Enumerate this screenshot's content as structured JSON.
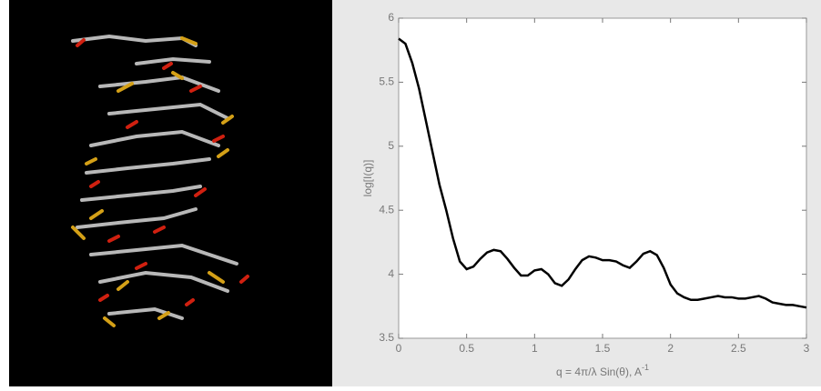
{
  "chart_data": {
    "type": "line",
    "ylabel": "log[I(q)]",
    "xlabel": "q = 4π/λ Sin(θ), A",
    "xlabel_superscript": "-1",
    "x": [
      0,
      0.05,
      0.1,
      0.15,
      0.2,
      0.25,
      0.3,
      0.35,
      0.4,
      0.45,
      0.5,
      0.55,
      0.6,
      0.65,
      0.7,
      0.75,
      0.8,
      0.85,
      0.9,
      0.95,
      1.0,
      1.05,
      1.1,
      1.15,
      1.2,
      1.25,
      1.3,
      1.35,
      1.4,
      1.45,
      1.5,
      1.55,
      1.6,
      1.65,
      1.7,
      1.75,
      1.8,
      1.85,
      1.9,
      1.95,
      2.0,
      2.05,
      2.1,
      2.15,
      2.2,
      2.25,
      2.3,
      2.35,
      2.4,
      2.45,
      2.5,
      2.55,
      2.6,
      2.65,
      2.7,
      2.75,
      2.8,
      2.85,
      2.9,
      2.95,
      3.0
    ],
    "series": [
      {
        "color": "#000000",
        "values": [
          5.84,
          5.8,
          5.65,
          5.45,
          5.2,
          4.95,
          4.7,
          4.5,
          4.28,
          4.1,
          4.04,
          4.06,
          4.12,
          4.17,
          4.19,
          4.18,
          4.12,
          4.05,
          3.99,
          3.99,
          4.03,
          4.04,
          4.0,
          3.93,
          3.91,
          3.96,
          4.04,
          4.11,
          4.14,
          4.13,
          4.11,
          4.11,
          4.1,
          4.07,
          4.05,
          4.1,
          4.16,
          4.18,
          4.15,
          4.05,
          3.92,
          3.85,
          3.82,
          3.8,
          3.8,
          3.81,
          3.82,
          3.83,
          3.82,
          3.82,
          3.81,
          3.81,
          3.82,
          3.83,
          3.81,
          3.78,
          3.77,
          3.76,
          3.76,
          3.75,
          3.74
        ]
      }
    ],
    "xlim": [
      0,
      3
    ],
    "xticks": [
      0,
      0.5,
      1,
      1.5,
      2,
      2.5,
      3
    ],
    "ylim": [
      3.5,
      6
    ],
    "yticks": [
      3.5,
      4,
      4.5,
      5,
      5.5,
      6
    ],
    "grid": false
  }
}
